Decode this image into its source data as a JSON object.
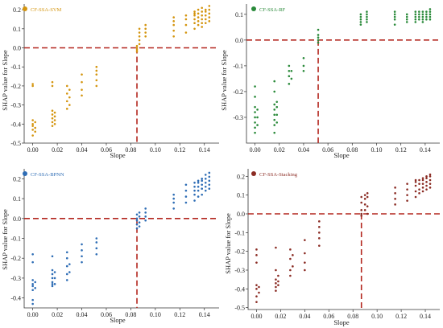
{
  "chart_data": [
    {
      "type": "scatter",
      "legend": "CF-SSA-SVM",
      "legend_position": "top-left",
      "color": "#d4950f",
      "xlabel": "Slope",
      "ylabel": "SHAP value for Slope",
      "xlim": [
        -0.007,
        0.152
      ],
      "ylim": [
        -0.5,
        0.23
      ],
      "xticks": [
        0.0,
        0.02,
        0.04,
        0.06,
        0.08,
        0.1,
        0.12,
        0.14
      ],
      "yticks": [
        -0.5,
        -0.4,
        -0.3,
        -0.2,
        -0.1,
        0.0,
        0.1,
        0.2
      ],
      "xtick_labels": [
        "0.00",
        "0.02",
        "0.04",
        "0.06",
        "0.08",
        "0.10",
        "0.12",
        "0.14"
      ],
      "ytick_labels": [
        "-0.5",
        "-0.4",
        "-0.3",
        "-0.2",
        "-0.1",
        "0.0",
        "0.1",
        "0.2"
      ],
      "threshold_x": 0.085,
      "threshold_y": 0.0,
      "groups": [
        {
          "x": 0.0,
          "y": [
            -0.46,
            -0.43,
            -0.41,
            -0.4,
            -0.38,
            -0.2,
            -0.19
          ]
        },
        {
          "x": 0.002,
          "y": [
            -0.44,
            -0.42,
            -0.39
          ]
        },
        {
          "x": 0.016,
          "y": [
            -0.41,
            -0.39,
            -0.37,
            -0.35,
            -0.33,
            -0.2,
            -0.18
          ]
        },
        {
          "x": 0.018,
          "y": [
            -0.4,
            -0.38,
            -0.36,
            -0.34
          ]
        },
        {
          "x": 0.028,
          "y": [
            -0.32,
            -0.28,
            -0.24,
            -0.2
          ]
        },
        {
          "x": 0.03,
          "y": [
            -0.3,
            -0.26,
            -0.22
          ]
        },
        {
          "x": 0.04,
          "y": [
            -0.25,
            -0.22,
            -0.18,
            -0.14
          ]
        },
        {
          "x": 0.052,
          "y": [
            -0.2,
            -0.17,
            -0.14,
            -0.12,
            -0.1
          ]
        },
        {
          "x": 0.085,
          "y": [
            -0.02,
            -0.01,
            0.0,
            0.01
          ]
        },
        {
          "x": 0.087,
          "y": [
            0.02,
            0.04,
            0.06,
            0.08,
            0.1
          ]
        },
        {
          "x": 0.092,
          "y": [
            0.06,
            0.08,
            0.1,
            0.12
          ]
        },
        {
          "x": 0.115,
          "y": [
            0.06,
            0.09,
            0.12,
            0.14,
            0.16
          ]
        },
        {
          "x": 0.125,
          "y": [
            0.08,
            0.12,
            0.15,
            0.17
          ]
        },
        {
          "x": 0.132,
          "y": [
            0.1,
            0.13,
            0.15,
            0.17,
            0.18,
            0.19
          ]
        },
        {
          "x": 0.135,
          "y": [
            0.12,
            0.14,
            0.16,
            0.18,
            0.2
          ]
        },
        {
          "x": 0.138,
          "y": [
            0.11,
            0.13,
            0.15,
            0.17,
            0.19,
            0.21
          ]
        },
        {
          "x": 0.141,
          "y": [
            0.13,
            0.15,
            0.17,
            0.19,
            0.2
          ]
        },
        {
          "x": 0.144,
          "y": [
            0.14,
            0.16,
            0.18,
            0.2,
            0.22
          ]
        }
      ]
    },
    {
      "type": "scatter",
      "legend": "CF-SSA-RF",
      "legend_position": "top-left",
      "color": "#2a8a3a",
      "xlabel": "Slope",
      "ylabel": "SHAP value for Slope",
      "xlim": [
        -0.007,
        0.152
      ],
      "ylim": [
        -0.4,
        0.14
      ],
      "xticks": [
        0.0,
        0.02,
        0.04,
        0.06,
        0.08,
        0.1,
        0.12,
        0.14
      ],
      "yticks": [
        -0.3,
        -0.2,
        -0.1,
        0.0,
        0.1
      ],
      "xtick_labels": [
        "0.00",
        "0.02",
        "0.04",
        "0.06",
        "0.08",
        "0.10",
        "0.12",
        "0.14"
      ],
      "ytick_labels": [
        "-0.3",
        "-0.2",
        "-0.1",
        "0.0",
        "0.1"
      ],
      "threshold_x": 0.052,
      "threshold_y": 0.0,
      "groups": [
        {
          "x": 0.0,
          "y": [
            -0.36,
            -0.34,
            -0.32,
            -0.3,
            -0.28,
            -0.26,
            -0.22,
            -0.18
          ]
        },
        {
          "x": 0.002,
          "y": [
            -0.33,
            -0.3,
            -0.27
          ]
        },
        {
          "x": 0.016,
          "y": [
            -0.36,
            -0.33,
            -0.31,
            -0.29,
            -0.27,
            -0.25,
            -0.2,
            -0.16
          ]
        },
        {
          "x": 0.018,
          "y": [
            -0.32,
            -0.29,
            -0.26,
            -0.24
          ]
        },
        {
          "x": 0.028,
          "y": [
            -0.17,
            -0.14,
            -0.12,
            -0.1
          ]
        },
        {
          "x": 0.03,
          "y": [
            -0.15,
            -0.12
          ]
        },
        {
          "x": 0.04,
          "y": [
            -0.12,
            -0.1,
            -0.07
          ]
        },
        {
          "x": 0.052,
          "y": [
            -0.01,
            0.0,
            0.01,
            0.02,
            0.04
          ]
        },
        {
          "x": 0.087,
          "y": [
            0.06,
            0.07,
            0.08,
            0.09,
            0.1
          ]
        },
        {
          "x": 0.092,
          "y": [
            0.07,
            0.08,
            0.09,
            0.1,
            0.11
          ]
        },
        {
          "x": 0.115,
          "y": [
            0.06,
            0.08,
            0.09,
            0.1,
            0.11
          ]
        },
        {
          "x": 0.125,
          "y": [
            0.07,
            0.08,
            0.09,
            0.1
          ]
        },
        {
          "x": 0.132,
          "y": [
            0.07,
            0.08,
            0.09,
            0.1,
            0.11
          ]
        },
        {
          "x": 0.135,
          "y": [
            0.08,
            0.09,
            0.1,
            0.11
          ]
        },
        {
          "x": 0.138,
          "y": [
            0.07,
            0.08,
            0.09,
            0.1,
            0.11
          ]
        },
        {
          "x": 0.141,
          "y": [
            0.08,
            0.09,
            0.1,
            0.11
          ]
        },
        {
          "x": 0.144,
          "y": [
            0.08,
            0.09,
            0.1,
            0.11,
            0.12
          ]
        }
      ]
    },
    {
      "type": "scatter",
      "legend": "CF-SSA-BPNN",
      "legend_position": "top-left",
      "color": "#2e6db5",
      "xlabel": "Slope",
      "ylabel": "SHAP value for Slope",
      "xlim": [
        -0.007,
        0.152
      ],
      "ylim": [
        -0.45,
        0.25
      ],
      "xticks": [
        0.0,
        0.02,
        0.04,
        0.06,
        0.08,
        0.1,
        0.12,
        0.14
      ],
      "yticks": [
        -0.4,
        -0.3,
        -0.2,
        -0.1,
        0.0,
        0.1,
        0.2
      ],
      "xtick_labels": [
        "0.00",
        "0.02",
        "0.04",
        "0.06",
        "0.08",
        "0.10",
        "0.12",
        "0.14"
      ],
      "ytick_labels": [
        "-0.4",
        "-0.3",
        "-0.2",
        "-0.1",
        "0.0",
        "0.1",
        "0.2"
      ],
      "threshold_x": 0.085,
      "threshold_y": 0.0,
      "groups": [
        {
          "x": 0.0,
          "y": [
            -0.43,
            -0.41,
            -0.36,
            -0.34,
            -0.33,
            -0.31,
            -0.22,
            -0.18
          ]
        },
        {
          "x": 0.002,
          "y": [
            -0.35,
            -0.32
          ]
        },
        {
          "x": 0.016,
          "y": [
            -0.34,
            -0.33,
            -0.32,
            -0.3,
            -0.28,
            -0.26,
            -0.19
          ]
        },
        {
          "x": 0.018,
          "y": [
            -0.33,
            -0.3,
            -0.27
          ]
        },
        {
          "x": 0.028,
          "y": [
            -0.31,
            -0.28,
            -0.24,
            -0.2,
            -0.17
          ]
        },
        {
          "x": 0.03,
          "y": [
            -0.27,
            -0.23
          ]
        },
        {
          "x": 0.04,
          "y": [
            -0.22,
            -0.19,
            -0.16,
            -0.13
          ]
        },
        {
          "x": 0.052,
          "y": [
            -0.18,
            -0.15,
            -0.12,
            -0.1
          ]
        },
        {
          "x": 0.085,
          "y": [
            -0.05,
            -0.03,
            -0.01,
            0.0,
            0.02
          ]
        },
        {
          "x": 0.087,
          "y": [
            -0.04,
            -0.02,
            0.01,
            0.03
          ]
        },
        {
          "x": 0.092,
          "y": [
            -0.01,
            0.01,
            0.03,
            0.05
          ]
        },
        {
          "x": 0.115,
          "y": [
            0.05,
            0.08,
            0.1,
            0.12
          ]
        },
        {
          "x": 0.125,
          "y": [
            0.08,
            0.11,
            0.14,
            0.17
          ]
        },
        {
          "x": 0.132,
          "y": [
            0.09,
            0.12,
            0.14,
            0.16,
            0.18
          ]
        },
        {
          "x": 0.135,
          "y": [
            0.11,
            0.14,
            0.16,
            0.18,
            0.19
          ]
        },
        {
          "x": 0.138,
          "y": [
            0.12,
            0.15,
            0.17,
            0.19,
            0.2
          ]
        },
        {
          "x": 0.141,
          "y": [
            0.14,
            0.16,
            0.18,
            0.2,
            0.22
          ]
        },
        {
          "x": 0.144,
          "y": [
            0.15,
            0.17,
            0.19,
            0.21,
            0.23
          ]
        }
      ]
    },
    {
      "type": "scatter",
      "legend": "CF-SSA-Stacking",
      "legend_position": "top-left",
      "color": "#8b2c24",
      "xlabel": "Slope",
      "ylabel": "SHAP value for Slope",
      "xlim": [
        -0.007,
        0.152
      ],
      "ylim": [
        -0.51,
        0.24
      ],
      "xticks": [
        0.0,
        0.02,
        0.04,
        0.06,
        0.08,
        0.1,
        0.12,
        0.14
      ],
      "yticks": [
        -0.5,
        -0.4,
        -0.3,
        -0.2,
        -0.1,
        0.0,
        0.1,
        0.2
      ],
      "xtick_labels": [
        "0.00",
        "0.02",
        "0.04",
        "0.06",
        "0.08",
        "0.10",
        "0.12",
        "0.14"
      ],
      "ytick_labels": [
        "-0.5",
        "-0.4",
        "-0.3",
        "-0.2",
        "-0.1",
        "0.0",
        "0.1",
        "0.2"
      ],
      "threshold_x": 0.087,
      "threshold_y": 0.0,
      "groups": [
        {
          "x": 0.0,
          "y": [
            -0.47,
            -0.44,
            -0.4,
            -0.38,
            -0.26,
            -0.22,
            -0.19
          ]
        },
        {
          "x": 0.002,
          "y": [
            -0.42,
            -0.39
          ]
        },
        {
          "x": 0.016,
          "y": [
            -0.41,
            -0.39,
            -0.37,
            -0.35,
            -0.3,
            -0.18
          ]
        },
        {
          "x": 0.018,
          "y": [
            -0.38,
            -0.36,
            -0.33
          ]
        },
        {
          "x": 0.028,
          "y": [
            -0.33,
            -0.3,
            -0.24,
            -0.19
          ]
        },
        {
          "x": 0.03,
          "y": [
            -0.28,
            -0.22
          ]
        },
        {
          "x": 0.04,
          "y": [
            -0.3,
            -0.26,
            -0.21,
            -0.14
          ]
        },
        {
          "x": 0.052,
          "y": [
            -0.17,
            -0.13,
            -0.1,
            -0.07,
            -0.04
          ]
        },
        {
          "x": 0.087,
          "y": [
            -0.01,
            0.0,
            0.02,
            0.06,
            0.09
          ]
        },
        {
          "x": 0.09,
          "y": [
            0.02,
            0.05,
            0.08,
            0.1
          ]
        },
        {
          "x": 0.092,
          "y": [
            0.0,
            0.04,
            0.09,
            0.11
          ]
        },
        {
          "x": 0.115,
          "y": [
            0.05,
            0.08,
            0.11,
            0.14
          ]
        },
        {
          "x": 0.125,
          "y": [
            0.07,
            0.1,
            0.13,
            0.16
          ]
        },
        {
          "x": 0.132,
          "y": [
            0.09,
            0.12,
            0.15,
            0.17,
            0.18
          ]
        },
        {
          "x": 0.135,
          "y": [
            0.11,
            0.13,
            0.16,
            0.18
          ]
        },
        {
          "x": 0.138,
          "y": [
            0.12,
            0.14,
            0.16,
            0.18,
            0.19
          ]
        },
        {
          "x": 0.141,
          "y": [
            0.13,
            0.15,
            0.17,
            0.19,
            0.2
          ]
        },
        {
          "x": 0.144,
          "y": [
            0.14,
            0.16,
            0.18,
            0.2,
            0.21
          ]
        }
      ]
    }
  ]
}
